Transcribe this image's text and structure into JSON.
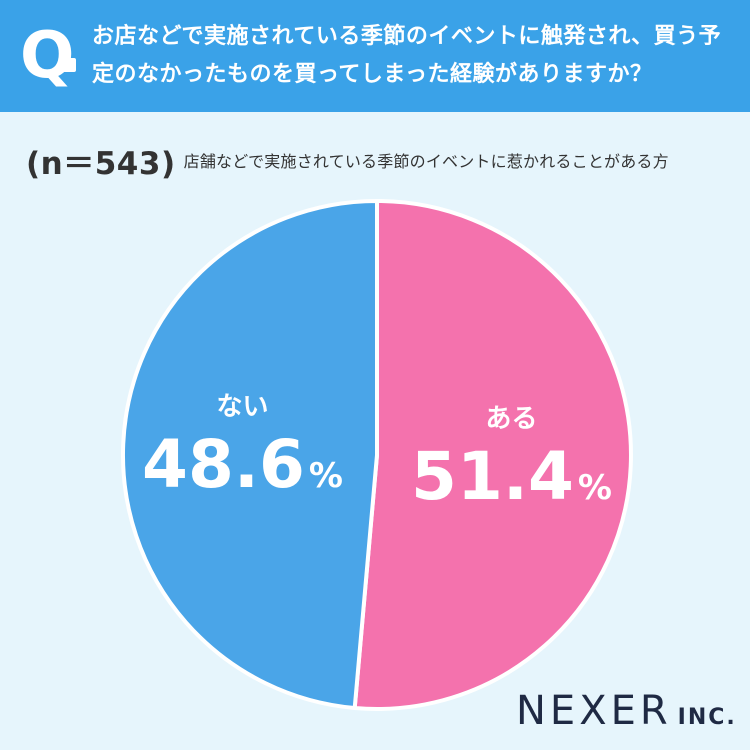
{
  "header": {
    "q_label": "Q",
    "question": "お店などで実施されている季節のイベントに触発され、買う予定のなかったものを買ってしまった経験がありますか？"
  },
  "subtitle": {
    "sample": "(n＝543)",
    "condition": "店舗などで実施されている季節のイベントに惹かれることがある方"
  },
  "colors": {
    "header_bg": "#3aa2e8",
    "page_bg": "#e6f5fc",
    "aru": "#f472ad",
    "nai": "#4aa5e8"
  },
  "chart_data": {
    "type": "pie",
    "slices": [
      {
        "label": "ある",
        "value": 51.4,
        "display": "51.4",
        "unit": "%",
        "color": "#f472ad"
      },
      {
        "label": "ない",
        "value": 48.6,
        "display": "48.6",
        "unit": "%",
        "color": "#4aa5e8"
      }
    ]
  },
  "logo": {
    "main": "NEXER",
    "suffix": "INC."
  }
}
